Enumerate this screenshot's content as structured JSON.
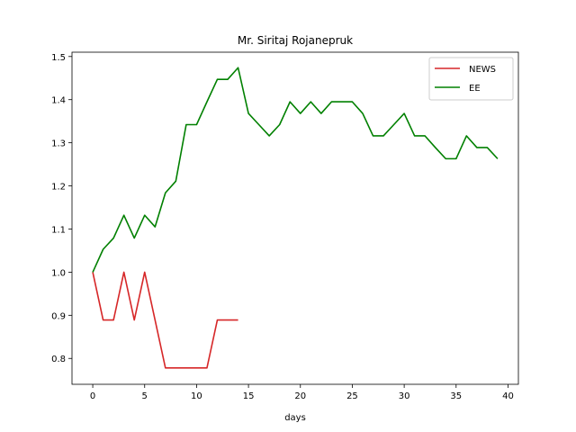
{
  "chart_data": {
    "type": "line",
    "title": "Mr. Siritaj Rojanepruk",
    "xlabel": "days",
    "ylabel": "",
    "xlim": [
      -2,
      41
    ],
    "ylim": [
      0.74,
      1.51
    ],
    "xticks": [
      0,
      5,
      10,
      15,
      20,
      25,
      30,
      35,
      40
    ],
    "yticks": [
      0.8,
      0.9,
      1.0,
      1.1,
      1.2,
      1.3,
      1.4,
      1.5
    ],
    "ytick_labels": [
      "0.8",
      "0.9",
      "1.0",
      "1.1",
      "1.2",
      "1.3",
      "1.4",
      "1.5"
    ],
    "grid": false,
    "legend_position": "top-right",
    "series": [
      {
        "name": "NEWS",
        "color": "#d62728",
        "x": [
          0,
          1,
          2,
          3,
          4,
          5,
          6,
          7,
          8,
          9,
          10,
          11,
          12,
          13,
          14
        ],
        "y": [
          1.0,
          0.889,
          0.889,
          1.0,
          0.889,
          1.0,
          0.889,
          0.778,
          0.778,
          0.778,
          0.778,
          0.778,
          0.889,
          0.889,
          0.889
        ]
      },
      {
        "name": "EE",
        "color": "#008000",
        "x": [
          0,
          1,
          2,
          3,
          4,
          5,
          6,
          7,
          8,
          9,
          10,
          11,
          12,
          13,
          14,
          15,
          16,
          17,
          18,
          19,
          20,
          21,
          22,
          23,
          24,
          25,
          26,
          27,
          28,
          29,
          30,
          31,
          32,
          33,
          34,
          35,
          36,
          37,
          38,
          39
        ],
        "y": [
          1.0,
          1.053,
          1.079,
          1.132,
          1.079,
          1.132,
          1.105,
          1.184,
          1.211,
          1.342,
          1.342,
          1.395,
          1.447,
          1.447,
          1.474,
          1.368,
          1.342,
          1.316,
          1.342,
          1.395,
          1.368,
          1.395,
          1.368,
          1.395,
          1.395,
          1.395,
          1.368,
          1.316,
          1.316,
          1.342,
          1.368,
          1.316,
          1.316,
          1.289,
          1.263,
          1.263,
          1.316,
          1.289,
          1.289,
          1.263
        ]
      }
    ]
  }
}
